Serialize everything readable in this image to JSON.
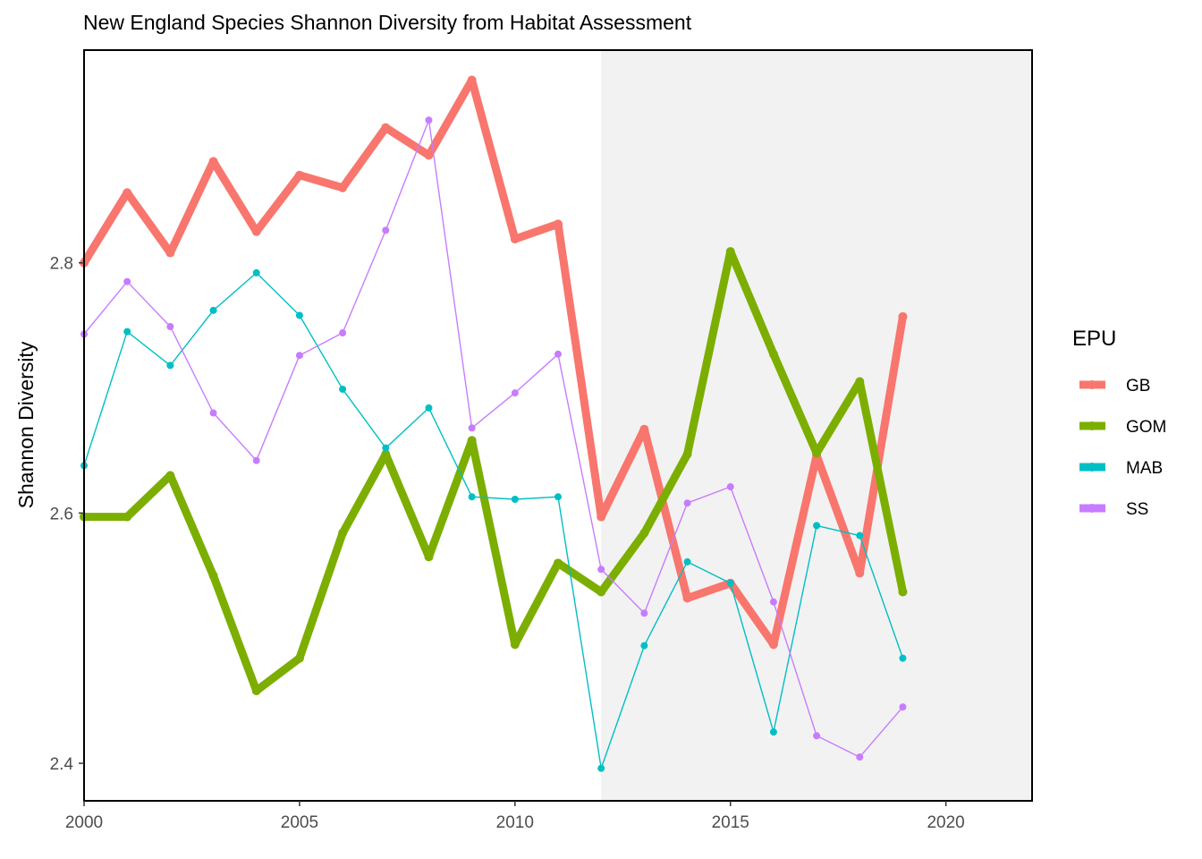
{
  "chart_data": {
    "type": "line",
    "title": "New England Species Shannon Diversity from Habitat Assessment",
    "xlabel": "",
    "ylabel": "Shannon Diversity",
    "xlim": [
      2000,
      2022
    ],
    "ylim": [
      2.37,
      2.97
    ],
    "x_ticks": [
      "2000",
      "2005",
      "2010",
      "2015",
      "2020"
    ],
    "y_ticks": [
      "2.4",
      "2.6",
      "2.8"
    ],
    "grid": false,
    "shaded_region": {
      "x_start": 2012,
      "x_end": 2022,
      "color": "#f2f2f2"
    },
    "legend": {
      "title": "EPU",
      "position": "right"
    },
    "x": [
      2000,
      2001,
      2002,
      2003,
      2004,
      2005,
      2006,
      2007,
      2008,
      2009,
      2010,
      2011,
      2012,
      2013,
      2014,
      2015,
      2016,
      2017,
      2018,
      2019
    ],
    "series": [
      {
        "name": "GB",
        "color": "#F8766D",
        "line_weight": "thick",
        "values": [
          2.8,
          2.856,
          2.808,
          2.881,
          2.825,
          2.87,
          2.86,
          2.908,
          2.886,
          2.946,
          2.819,
          2.831,
          2.597,
          2.667,
          2.532,
          2.544,
          2.495,
          2.646,
          2.552,
          2.757
        ]
      },
      {
        "name": "GOM",
        "color": "#7CAE00",
        "line_weight": "thick",
        "values": [
          2.597,
          2.597,
          2.63,
          2.55,
          2.458,
          2.484,
          2.584,
          2.647,
          2.565,
          2.658,
          2.495,
          2.56,
          2.537,
          2.584,
          2.647,
          2.809,
          2.727,
          2.648,
          2.705,
          2.537
        ]
      },
      {
        "name": "MAB",
        "color": "#00BFC4",
        "line_weight": "thin",
        "values": [
          2.638,
          2.745,
          2.718,
          2.762,
          2.792,
          2.758,
          2.699,
          2.652,
          2.684,
          2.613,
          2.611,
          2.613,
          2.396,
          2.494,
          2.561,
          2.544,
          2.425,
          2.59,
          2.582,
          2.484
        ]
      },
      {
        "name": "SS",
        "color": "#C77CFF",
        "line_weight": "thin",
        "values": [
          2.743,
          2.785,
          2.749,
          2.68,
          2.642,
          2.726,
          2.744,
          2.826,
          2.914,
          2.668,
          2.696,
          2.727,
          2.555,
          2.52,
          2.608,
          2.621,
          2.529,
          2.422,
          2.405,
          2.445
        ]
      }
    ]
  }
}
